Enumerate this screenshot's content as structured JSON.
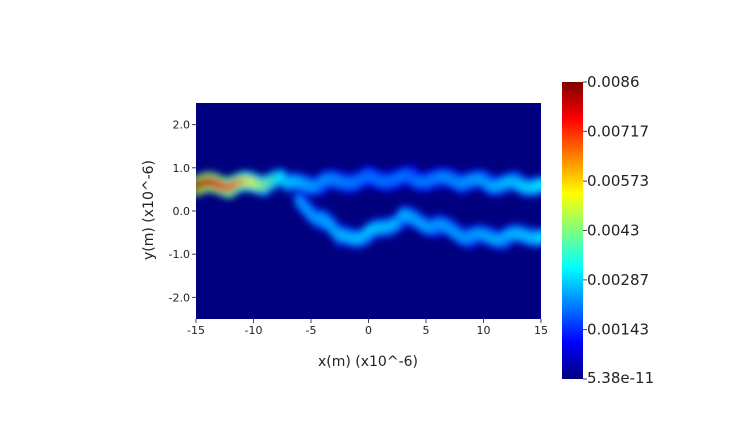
{
  "chart_data": {
    "type": "heatmap",
    "title": "",
    "xlabel": "x(m) (x10^-6)",
    "ylabel": "y(m) (x10^-6)",
    "xlim": [
      -15,
      15
    ],
    "ylim": [
      -2.5,
      2.5
    ],
    "x_ticks": [
      -15,
      -10,
      -5,
      0,
      5,
      10,
      15
    ],
    "x_tick_labels": [
      "-15",
      "-10",
      "-5",
      "0",
      "5",
      "10",
      "15"
    ],
    "y_ticks": [
      -2,
      -1,
      0,
      1,
      2
    ],
    "y_tick_labels": [
      "-2.0",
      "-1.0",
      "0.0",
      "1.0",
      "2.0"
    ],
    "colormap": "jet",
    "background_color": "#00007f",
    "colorbar": {
      "min": 5.38e-11,
      "max": 0.0086,
      "tick_values": [
        0.0086,
        0.00717,
        0.00573,
        0.0043,
        0.00287,
        0.00143,
        5.38e-11
      ],
      "tick_labels": [
        "0.0086",
        "0.00717",
        "0.00573",
        "0.0043",
        "0.00287",
        "0.00143",
        "5.38e-11"
      ]
    },
    "features": [
      {
        "name": "input-beam",
        "path": [
          [
            -15,
            0.6,
            0.0086
          ],
          [
            -12,
            0.6,
            0.0072
          ],
          [
            -9,
            0.65,
            0.0045
          ],
          [
            -7.5,
            0.7,
            0.0032
          ]
        ]
      },
      {
        "name": "upper-branch",
        "path": [
          [
            -7,
            0.6,
            0.003
          ],
          [
            -4,
            0.65,
            0.0025
          ],
          [
            0,
            0.75,
            0.0022
          ],
          [
            4,
            0.75,
            0.0022
          ],
          [
            8,
            0.7,
            0.0025
          ],
          [
            10.5,
            0.65,
            0.0027
          ],
          [
            13,
            0.62,
            0.003
          ],
          [
            15,
            0.6,
            0.0032
          ]
        ]
      },
      {
        "name": "crossing-arm",
        "path": [
          [
            -6,
            0.2,
            0.0025
          ],
          [
            -4,
            -0.2,
            0.0027
          ],
          [
            -2.5,
            -0.6,
            0.0028
          ]
        ]
      },
      {
        "name": "lower-branch",
        "path": [
          [
            -2.5,
            -0.6,
            0.0028
          ],
          [
            0,
            -0.55,
            0.003
          ],
          [
            3,
            -0.15,
            0.0028
          ],
          [
            6,
            -0.35,
            0.0026
          ],
          [
            9,
            -0.6,
            0.0026
          ],
          [
            12,
            -0.6,
            0.0028
          ],
          [
            15,
            -0.55,
            0.003
          ]
        ]
      }
    ]
  }
}
